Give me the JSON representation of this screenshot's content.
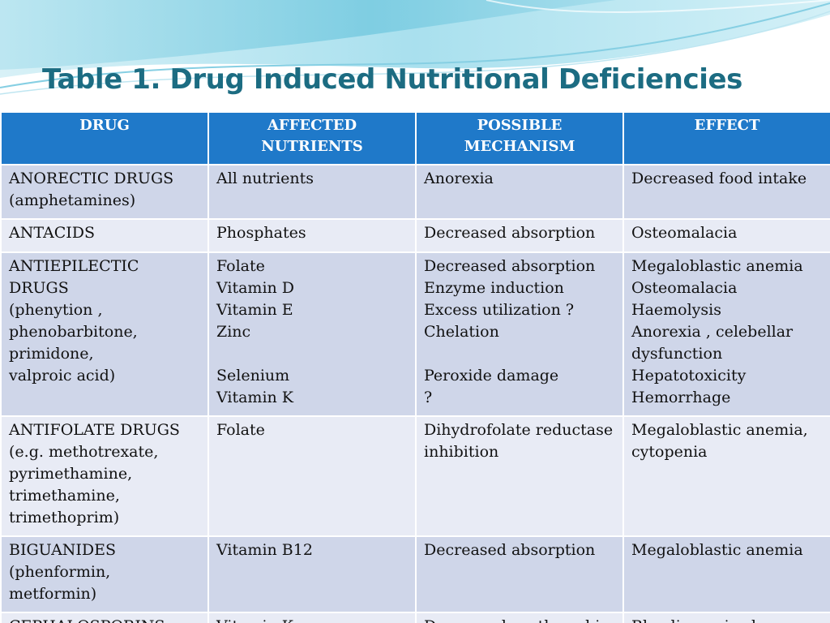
{
  "slide": {
    "title": "Table 1. Drug Induced Nutritional Deficiencies"
  },
  "colors": {
    "title": "#1c6c82",
    "header_bg": "#1f79c9",
    "row_dark": "#cfd6e9",
    "row_light": "#e8ebf5",
    "wave_light": "#c4e9f3",
    "wave_mid": "#8fd3e8"
  },
  "table": {
    "headers": [
      "DRUG",
      "AFFECTED\nNUTRIENTS",
      "POSSIBLE\nMECHANISM",
      "EFFECT"
    ],
    "rows": [
      [
        "ANORECTIC DRUGS\n(amphetamines)",
        "All nutrients",
        "Anorexia",
        "Decreased food intake"
      ],
      [
        "ANTACIDS",
        "Phosphates",
        "Decreased absorption",
        "Osteomalacia"
      ],
      [
        "ANTIEPILECTIC\nDRUGS\n(phenytion ,\nphenobarbitone,\nprimidone,\nvalproic acid)",
        "Folate\nVitamin D\nVitamin E\nZinc\n\nSelenium\nVitamin K",
        "Decreased absorption\nEnzyme induction\nExcess utilization ?\nChelation\n\nPeroxide damage\n?",
        "Megaloblastic anemia\nOsteomalacia\nHaemolysis\nAnorexia , celebellar\ndysfunction\nHepatotoxicity\nHemorrhage"
      ],
      [
        "ANTIFOLATE DRUGS\n(e.g. methotrexate,\npyrimethamine,\ntrimethamine,\ntrimethoprim)",
        "Folate",
        "Dihydrofolate reductase\ninhibition",
        "Megaloblastic anemia,\ncytopenia"
      ],
      [
        "BIGUANIDES\n(phenformin,\nmetformin)",
        "Vitamin B12",
        "Decreased absorption",
        "Megaloblastic anemia"
      ],
      [
        "CEPHALOSPORINS",
        "Vitamin K",
        "Decreased prothrombin",
        "Bleeding episodes"
      ]
    ]
  }
}
